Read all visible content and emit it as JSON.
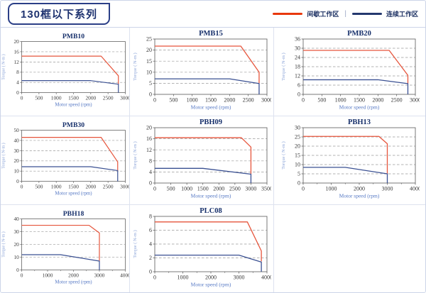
{
  "header": {
    "title": "130框以下系列",
    "legend": {
      "items": [
        {
          "label": "间歇工作区",
          "color": "#e8380d"
        },
        {
          "label": "连续工作区",
          "color": "#24386e"
        }
      ],
      "separator": "|"
    }
  },
  "colors": {
    "intermittent_line": "#e6553c",
    "continuous_line": "#3a5092",
    "grid_border": "#dde2ef",
    "title_box_border": "#2b3f87"
  },
  "chart_data": [
    {
      "type": "line",
      "title": "PMB10",
      "xlabel": "Motor speed (rpm)",
      "ylabel": "Torque ( N-m )",
      "xlim": [
        0,
        3000
      ],
      "ylim": [
        0,
        20
      ],
      "xticks": [
        0,
        500,
        1000,
        1500,
        2000,
        2500,
        3000
      ],
      "yticks": [
        0,
        4,
        8,
        12,
        16,
        20
      ],
      "series": [
        {
          "name": "间歇工作区",
          "color": "#e6553c",
          "points": [
            [
              0,
              14.3
            ],
            [
              2300,
              14.3
            ],
            [
              2800,
              6.6
            ],
            [
              2800,
              3.3
            ]
          ]
        },
        {
          "name": "连续工作区",
          "color": "#3a5092",
          "points": [
            [
              0,
              4.7
            ],
            [
              2000,
              4.7
            ],
            [
              2800,
              3.3
            ],
            [
              2800,
              0
            ]
          ]
        }
      ]
    },
    {
      "type": "line",
      "title": "PMB15",
      "xlabel": "Motor speed (rpm)",
      "ylabel": "Torque ( N-m )",
      "xlim": [
        0,
        3000
      ],
      "ylim": [
        0,
        25
      ],
      "xticks": [
        0,
        500,
        1000,
        1500,
        2000,
        2500,
        3000
      ],
      "yticks": [
        0,
        5,
        10,
        15,
        20,
        25
      ],
      "series": [
        {
          "name": "间歇工作区",
          "color": "#e6553c",
          "points": [
            [
              0,
              21.8
            ],
            [
              2300,
              21.8
            ],
            [
              2790,
              10
            ],
            [
              2790,
              5
            ]
          ]
        },
        {
          "name": "连续工作区",
          "color": "#3a5092",
          "points": [
            [
              0,
              7
            ],
            [
              2000,
              7
            ],
            [
              2790,
              4.9
            ],
            [
              2790,
              0
            ]
          ]
        }
      ]
    },
    {
      "type": "line",
      "title": "PMB20",
      "xlabel": "Motor speed (rpm)",
      "ylabel": "Torque ( N-m )",
      "xlim": [
        0,
        3000
      ],
      "ylim": [
        0,
        36
      ],
      "xticks": [
        0,
        500,
        1000,
        1500,
        2000,
        2500,
        3000
      ],
      "yticks": [
        0,
        6,
        12,
        18,
        24,
        30,
        36
      ],
      "series": [
        {
          "name": "间歇工作区",
          "color": "#e6553c",
          "points": [
            [
              0,
              28.6
            ],
            [
              2300,
              28.6
            ],
            [
              2800,
              12.4
            ],
            [
              2800,
              7
            ]
          ]
        },
        {
          "name": "连续工作区",
          "color": "#3a5092",
          "points": [
            [
              0,
              9.5
            ],
            [
              2000,
              9.5
            ],
            [
              2800,
              7
            ],
            [
              2800,
              0
            ]
          ]
        }
      ]
    },
    {
      "type": "line",
      "title": "PMB30",
      "xlabel": "Motor speed (rpm)",
      "ylabel": "Torque ( N-m )",
      "xlim": [
        0,
        3000
      ],
      "ylim": [
        0,
        50
      ],
      "xticks": [
        0,
        500,
        1000,
        1500,
        2000,
        2500,
        3000
      ],
      "yticks": [
        0,
        10,
        20,
        30,
        40,
        50
      ],
      "series": [
        {
          "name": "间歇工作区",
          "color": "#e6553c",
          "points": [
            [
              0,
              43
            ],
            [
              2300,
              43
            ],
            [
              2780,
              19
            ],
            [
              2780,
              10.5
            ]
          ]
        },
        {
          "name": "连续工作区",
          "color": "#3a5092",
          "points": [
            [
              0,
              14.3
            ],
            [
              2000,
              14.3
            ],
            [
              2780,
              10.5
            ],
            [
              2780,
              0
            ]
          ]
        }
      ]
    },
    {
      "type": "line",
      "title": "PBH09",
      "xlabel": "Motor speed (rpm)",
      "ylabel": "Torque ( N-m )",
      "xlim": [
        0,
        3500
      ],
      "ylim": [
        0,
        20
      ],
      "xticks": [
        0,
        500,
        1000,
        1500,
        2000,
        2500,
        3000,
        3500
      ],
      "yticks": [
        0,
        4,
        8,
        12,
        16,
        20
      ],
      "series": [
        {
          "name": "间歇工作区",
          "color": "#e6553c",
          "points": [
            [
              0,
              16.4
            ],
            [
              2700,
              16.4
            ],
            [
              3000,
              13
            ],
            [
              3000,
              3.2
            ]
          ]
        },
        {
          "name": "连续工作区",
          "color": "#3a5092",
          "points": [
            [
              0,
              5.3
            ],
            [
              1500,
              5.3
            ],
            [
              3000,
              3.2
            ],
            [
              3000,
              0
            ]
          ]
        }
      ]
    },
    {
      "type": "line",
      "title": "PBH13",
      "xlabel": "Motor speed (rpm)",
      "ylabel": "Torque ( N-m )",
      "xlim": [
        0,
        4000
      ],
      "ylim": [
        0,
        30
      ],
      "xticks": [
        0,
        1000,
        2000,
        3000,
        4000
      ],
      "xminor": 500,
      "yticks": [
        0,
        5,
        10,
        15,
        20,
        25,
        30
      ],
      "series": [
        {
          "name": "间歇工作区",
          "color": "#e6553c",
          "points": [
            [
              0,
              25.3
            ],
            [
              2700,
              25.3
            ],
            [
              3000,
              21.3
            ],
            [
              3000,
              5
            ]
          ]
        },
        {
          "name": "连续工作区",
          "color": "#3a5092",
          "points": [
            [
              0,
              8.5
            ],
            [
              1500,
              8.5
            ],
            [
              3000,
              5
            ],
            [
              3000,
              0
            ]
          ]
        }
      ]
    },
    {
      "type": "line",
      "title": "PBH18",
      "xlabel": "Motor speed (rpm)",
      "ylabel": "Torque ( N-m )",
      "xlim": [
        0,
        4000
      ],
      "ylim": [
        0,
        40
      ],
      "xticks": [
        0,
        1000,
        2000,
        3000,
        4000
      ],
      "xminor": 500,
      "yticks": [
        0,
        10,
        20,
        30,
        40
      ],
      "series": [
        {
          "name": "间歇工作区",
          "color": "#e6553c",
          "points": [
            [
              0,
              35
            ],
            [
              2600,
              35
            ],
            [
              3000,
              29
            ],
            [
              3000,
              7
            ]
          ]
        },
        {
          "name": "连续工作区",
          "color": "#3a5092",
          "points": [
            [
              0,
              12
            ],
            [
              1500,
              12
            ],
            [
              3000,
              7
            ],
            [
              3000,
              0
            ]
          ]
        }
      ]
    },
    {
      "type": "line",
      "title": "PLC08",
      "xlabel": "Motor speed (rpm)",
      "ylabel": "Torque ( N-m )",
      "xlim": [
        0,
        4000
      ],
      "ylim": [
        0,
        8
      ],
      "xticks": [
        0,
        1000,
        2000,
        3000,
        4000
      ],
      "xminor": 500,
      "yticks": [
        0,
        2,
        4,
        6,
        8
      ],
      "series": [
        {
          "name": "间歇工作区",
          "color": "#e6553c",
          "points": [
            [
              0,
              7.2
            ],
            [
              3300,
              7.2
            ],
            [
              3800,
              3
            ],
            [
              3800,
              1.5
            ]
          ]
        },
        {
          "name": "连续工作区",
          "color": "#3a5092",
          "points": [
            [
              0,
              2.4
            ],
            [
              3000,
              2.4
            ],
            [
              3800,
              1.4
            ],
            [
              3800,
              0
            ]
          ]
        }
      ]
    }
  ]
}
